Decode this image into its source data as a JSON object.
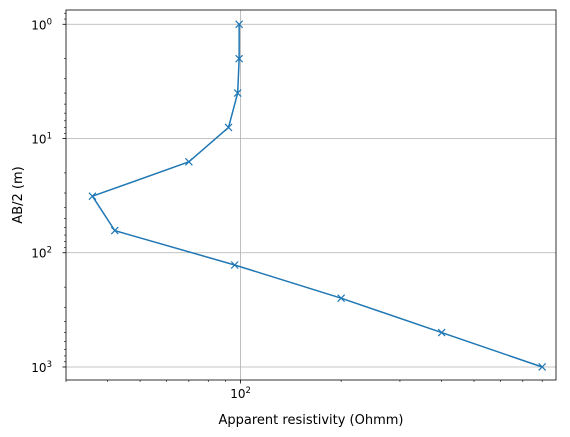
{
  "chart_data": {
    "type": "line",
    "xlabel": "Apparent resistivity (Ohmm)",
    "ylabel": "AB/2 (m)",
    "xscale": "log",
    "yscale": "log",
    "y_inverted": true,
    "xlim": [
      30,
      880
    ],
    "ylim": [
      1300,
      0.75
    ],
    "grid": true,
    "x_ticks": [
      {
        "value": 100,
        "base": "10",
        "exp": "2"
      }
    ],
    "y_ticks": [
      {
        "value": 1,
        "base": "10",
        "exp": "0"
      },
      {
        "value": 10,
        "base": "10",
        "exp": "1"
      },
      {
        "value": 100,
        "base": "10",
        "exp": "2"
      },
      {
        "value": 1000,
        "base": "10",
        "exp": "3"
      }
    ],
    "series": [
      {
        "color": "#1f77b4",
        "marker": "x",
        "x": [
          99,
          99,
          98,
          92,
          70,
          36,
          42,
          96,
          200,
          400,
          800
        ],
        "y": [
          1.0,
          2.0,
          4.0,
          8.0,
          16.0,
          32.0,
          64.0,
          128.0,
          250.0,
          500.0,
          1000.0
        ]
      }
    ]
  }
}
